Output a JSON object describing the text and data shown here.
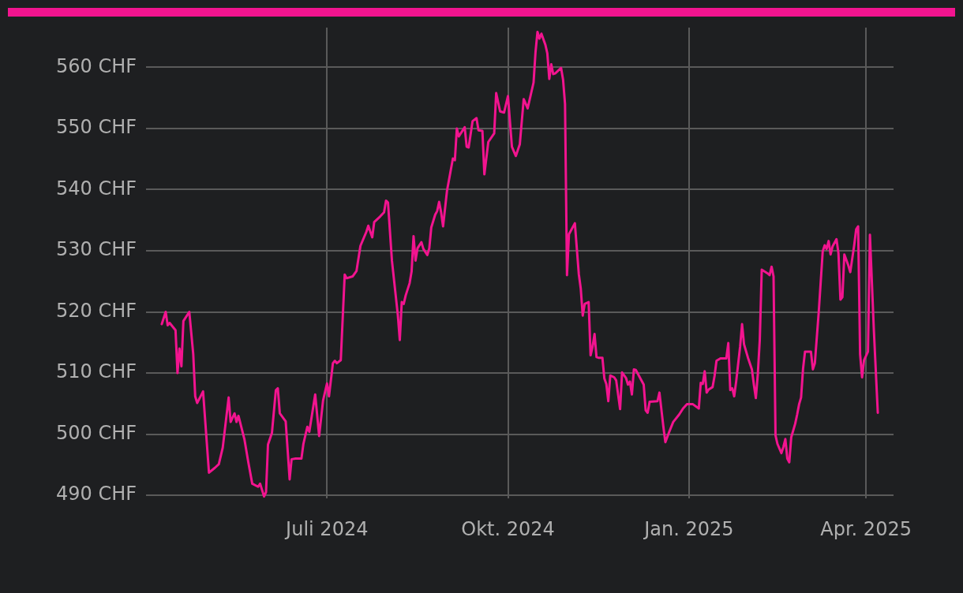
{
  "chart_data": {
    "type": "line",
    "xlim": [
      "2024-03-31",
      "2025-04-15"
    ],
    "xticks": [
      {
        "value": "2024-07-01",
        "label": "Juli 2024"
      },
      {
        "value": "2024-10-01",
        "label": "Okt. 2024"
      },
      {
        "value": "2025-01-01",
        "label": "Jan. 2025"
      },
      {
        "value": "2025-04-01",
        "label": "Apr. 2025"
      }
    ],
    "ylim": [
      489.5,
      566.5
    ],
    "yticks": [
      {
        "value": 490,
        "label": "490 CHF"
      },
      {
        "value": 500,
        "label": "500 CHF"
      },
      {
        "value": 510,
        "label": "510 CHF"
      },
      {
        "value": 520,
        "label": "520 CHF"
      },
      {
        "value": 530,
        "label": "530 CHF"
      },
      {
        "value": 540,
        "label": "540 CHF"
      },
      {
        "value": 550,
        "label": "550 CHF"
      },
      {
        "value": 560,
        "label": "560 CHF"
      }
    ],
    "grid": true,
    "legend": false,
    "line_style": "solid",
    "x": [
      "2024-04-08",
      "2024-04-10",
      "2024-04-11",
      "2024-04-12",
      "2024-04-15",
      "2024-04-16",
      "2024-04-17",
      "2024-04-18",
      "2024-04-19",
      "2024-04-22",
      "2024-04-24",
      "2024-04-25",
      "2024-04-26",
      "2024-04-29",
      "2024-05-02",
      "2024-05-05",
      "2024-05-07",
      "2024-05-09",
      "2024-05-12",
      "2024-05-13",
      "2024-05-15",
      "2024-05-16",
      "2024-05-17",
      "2024-05-20",
      "2024-05-22",
      "2024-05-24",
      "2024-05-27",
      "2024-05-28",
      "2024-05-30",
      "2024-05-31",
      "2024-06-01",
      "2024-06-03",
      "2024-06-05",
      "2024-06-06",
      "2024-06-07",
      "2024-06-10",
      "2024-06-12",
      "2024-06-13",
      "2024-06-15",
      "2024-06-18",
      "2024-06-19",
      "2024-06-21",
      "2024-06-22",
      "2024-06-25",
      "2024-06-27",
      "2024-06-29",
      "2024-07-01",
      "2024-07-02",
      "2024-07-04",
      "2024-07-05",
      "2024-07-06",
      "2024-07-08",
      "2024-07-10",
      "2024-07-11",
      "2024-07-14",
      "2024-07-16",
      "2024-07-18",
      "2024-07-21",
      "2024-07-22",
      "2024-07-24",
      "2024-07-25",
      "2024-07-28",
      "2024-07-30",
      "2024-07-31",
      "2024-08-01",
      "2024-08-03",
      "2024-08-06",
      "2024-08-07",
      "2024-08-08",
      "2024-08-09",
      "2024-08-10",
      "2024-08-12",
      "2024-08-13",
      "2024-08-14",
      "2024-08-15",
      "2024-08-16",
      "2024-08-18",
      "2024-08-19",
      "2024-08-21",
      "2024-08-22",
      "2024-08-23",
      "2024-08-25",
      "2024-08-26",
      "2024-08-27",
      "2024-08-28",
      "2024-08-29",
      "2024-08-31",
      "2024-09-03",
      "2024-09-04",
      "2024-09-05",
      "2024-09-06",
      "2024-09-09",
      "2024-09-10",
      "2024-09-11",
      "2024-09-13",
      "2024-09-15",
      "2024-09-16",
      "2024-09-18",
      "2024-09-19",
      "2024-09-21",
      "2024-09-24",
      "2024-09-25",
      "2024-09-27",
      "2024-09-29",
      "2024-10-01",
      "2024-10-03",
      "2024-10-05",
      "2024-10-07",
      "2024-10-09",
      "2024-10-11",
      "2024-10-14",
      "2024-10-15",
      "2024-10-16",
      "2024-10-17",
      "2024-10-18",
      "2024-10-20",
      "2024-10-21",
      "2024-10-22",
      "2024-10-23",
      "2024-10-24",
      "2024-10-25",
      "2024-10-28",
      "2024-10-29",
      "2024-10-30",
      "2024-10-31",
      "2024-11-01",
      "2024-11-04",
      "2024-11-06",
      "2024-11-07",
      "2024-11-08",
      "2024-11-09",
      "2024-11-11",
      "2024-11-12",
      "2024-11-13",
      "2024-11-14",
      "2024-11-15",
      "2024-11-16",
      "2024-11-18",
      "2024-11-19",
      "2024-11-20",
      "2024-11-21",
      "2024-11-22",
      "2024-11-24",
      "2024-11-25",
      "2024-11-27",
      "2024-11-28",
      "2024-11-30",
      "2024-12-01",
      "2024-12-02",
      "2024-12-03",
      "2024-12-04",
      "2024-12-05",
      "2024-12-09",
      "2024-12-10",
      "2024-12-11",
      "2024-12-12",
      "2024-12-16",
      "2024-12-17",
      "2024-12-18",
      "2024-12-19",
      "2024-12-20",
      "2024-12-22",
      "2024-12-24",
      "2024-12-27",
      "2024-12-29",
      "2024-12-31",
      "2025-01-03",
      "2025-01-06",
      "2025-01-07",
      "2025-01-08",
      "2025-01-09",
      "2025-01-10",
      "2025-01-11",
      "2025-01-13",
      "2025-01-14",
      "2025-01-15",
      "2025-01-17",
      "2025-01-20",
      "2025-01-21",
      "2025-01-22",
      "2025-01-23",
      "2025-01-24",
      "2025-01-25",
      "2025-01-27",
      "2025-01-28",
      "2025-01-29",
      "2025-01-31",
      "2025-02-02",
      "2025-02-03",
      "2025-02-04",
      "2025-02-05",
      "2025-02-06",
      "2025-02-07",
      "2025-02-10",
      "2025-02-11",
      "2025-02-12",
      "2025-02-13",
      "2025-02-14",
      "2025-02-15",
      "2025-02-17",
      "2025-02-18",
      "2025-02-19",
      "2025-02-20",
      "2025-02-21",
      "2025-02-22",
      "2025-02-24",
      "2025-02-25",
      "2025-02-26",
      "2025-02-27",
      "2025-02-28",
      "2025-03-01",
      "2025-03-02",
      "2025-03-04",
      "2025-03-05",
      "2025-03-06",
      "2025-03-08",
      "2025-03-10",
      "2025-03-11",
      "2025-03-12",
      "2025-03-13",
      "2025-03-14",
      "2025-03-15",
      "2025-03-17",
      "2025-03-18",
      "2025-03-19",
      "2025-03-20",
      "2025-03-21",
      "2025-03-23",
      "2025-03-24",
      "2025-03-26",
      "2025-03-27",
      "2025-03-28",
      "2025-03-29",
      "2025-03-30",
      "2025-03-31",
      "2025-04-02",
      "2025-04-03",
      "2025-04-05",
      "2025-04-07"
    ],
    "series": [
      {
        "color": "#f2148f",
        "values": [
          518.0,
          520.0,
          517.8,
          518.2,
          517.0,
          510.0,
          514.0,
          511.1,
          518.5,
          520.0,
          513.1,
          506.2,
          505.1,
          507.0,
          493.7,
          494.5,
          495.1,
          497.8,
          506.0,
          502.0,
          503.4,
          502.0,
          503.0,
          499.2,
          495.4,
          491.9,
          491.4,
          491.9,
          489.8,
          490.5,
          498.3,
          500.2,
          507.2,
          507.5,
          503.4,
          502.1,
          492.6,
          495.9,
          496.0,
          496.0,
          498.4,
          501.2,
          500.4,
          506.5,
          499.7,
          505.5,
          508.3,
          506.2,
          511.6,
          512.0,
          511.6,
          512.1,
          526.1,
          525.5,
          525.8,
          526.7,
          530.8,
          533.1,
          534.1,
          532.2,
          534.7,
          535.6,
          536.3,
          538.2,
          537.9,
          528.4,
          519.5,
          515.4,
          521.6,
          521.3,
          522.7,
          524.7,
          526.6,
          532.4,
          528.4,
          530.4,
          531.4,
          530.3,
          529.3,
          530.4,
          533.8,
          535.9,
          536.5,
          538.0,
          536.3,
          534.0,
          539.8,
          545.1,
          544.8,
          550.0,
          548.7,
          550.2,
          547.0,
          546.9,
          551.2,
          551.7,
          549.7,
          549.6,
          542.5,
          547.8,
          549.2,
          555.8,
          552.8,
          552.6,
          555.3,
          547.0,
          545.5,
          547.4,
          554.8,
          553.3,
          557.5,
          562.5,
          565.8,
          564.7,
          565.5,
          563.7,
          562.3,
          558.1,
          560.5,
          558.9,
          559.0,
          559.9,
          558.0,
          554.0,
          526.0,
          532.7,
          534.5,
          526.2,
          523.8,
          519.4,
          521.3,
          521.6,
          512.9,
          514.3,
          516.4,
          512.6,
          512.5,
          512.5,
          509.1,
          508.2,
          505.4,
          509.6,
          509.3,
          508.8,
          504.1,
          510.1,
          509.2,
          508.1,
          508.6,
          506.5,
          510.6,
          510.5,
          508.1,
          503.9,
          503.5,
          505.3,
          505.4,
          506.8,
          504.0,
          501.2,
          498.7,
          500.4,
          502.0,
          503.2,
          504.2,
          504.9,
          504.9,
          504.2,
          508.4,
          508.2,
          510.3,
          506.8,
          507.3,
          507.7,
          509.5,
          512.0,
          512.4,
          512.4,
          514.9,
          507.2,
          507.5,
          506.2,
          508.6,
          514.3,
          518.0,
          514.7,
          512.5,
          510.6,
          508.1,
          505.9,
          509.8,
          515.4,
          526.9,
          526.3,
          526.0,
          527.4,
          525.8,
          499.8,
          498.4,
          496.9,
          497.9,
          499.2,
          496.0,
          495.4,
          499.5,
          501.7,
          503.2,
          504.9,
          506.0,
          510.7,
          513.5,
          513.5,
          513.5,
          510.6,
          511.6,
          520.1,
          529.9,
          530.9,
          530.3,
          531.6,
          529.4,
          530.7,
          531.9,
          529.6,
          522.0,
          522.4,
          529.4,
          527.6,
          526.5,
          530.9,
          533.5,
          534.0,
          513.1,
          509.3,
          512.1,
          513.5,
          532.6,
          517.0,
          503.5
        ]
      }
    ]
  }
}
